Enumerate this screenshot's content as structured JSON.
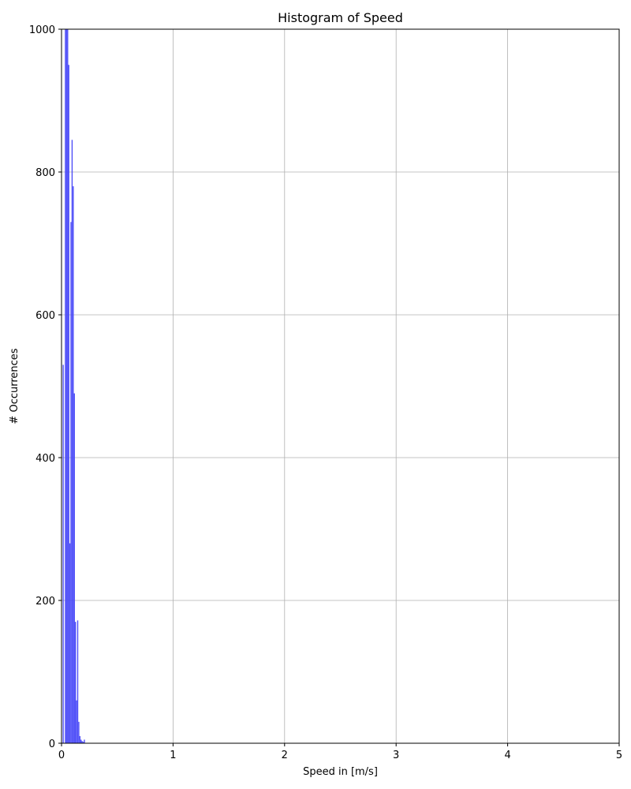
{
  "chart_data": {
    "type": "bar",
    "title": "Histogram of Speed",
    "xlabel": "Speed in [m/s]",
    "ylabel": "# Occurrences",
    "xlim": [
      0,
      5
    ],
    "ylim": [
      0,
      1000
    ],
    "grid": true,
    "bar_color": "#4848f8",
    "x_ticks": [
      "0",
      "1",
      "2",
      "3",
      "4",
      "5"
    ],
    "y_ticks": [
      "0",
      "200",
      "400",
      "600",
      "800",
      "1000"
    ],
    "bin_width": 0.01,
    "bins": [
      {
        "x": 0.015,
        "value": 530
      },
      {
        "x": 0.025,
        "value": 0
      },
      {
        "x": 0.035,
        "value": 1000
      },
      {
        "x": 0.045,
        "value": 1000
      },
      {
        "x": 0.055,
        "value": 1000
      },
      {
        "x": 0.065,
        "value": 950
      },
      {
        "x": 0.075,
        "value": 280
      },
      {
        "x": 0.085,
        "value": 730
      },
      {
        "x": 0.095,
        "value": 845
      },
      {
        "x": 0.105,
        "value": 780
      },
      {
        "x": 0.115,
        "value": 490
      },
      {
        "x": 0.125,
        "value": 170
      },
      {
        "x": 0.135,
        "value": 60
      },
      {
        "x": 0.145,
        "value": 172
      },
      {
        "x": 0.155,
        "value": 30
      },
      {
        "x": 0.165,
        "value": 10
      },
      {
        "x": 0.175,
        "value": 5
      },
      {
        "x": 0.185,
        "value": 3
      },
      {
        "x": 0.195,
        "value": 2
      },
      {
        "x": 0.205,
        "value": 5
      }
    ]
  }
}
